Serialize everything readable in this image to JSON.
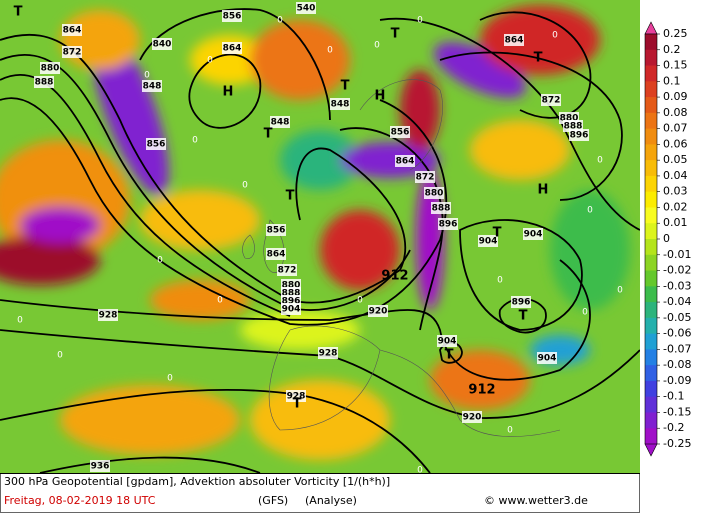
{
  "footer": {
    "description": "300 hPa Geopotential [gpdam], Advektion absoluter Vorticity [1/(h*h)]",
    "date": "Freitag, 08-02-2019  18 UTC",
    "model": "(GFS)",
    "run": "(Analyse)",
    "credit": "© www.wetter3.de"
  },
  "colorbar": {
    "labels": [
      "0.25",
      "0.2",
      "0.15",
      "0.1",
      "0.09",
      "0.08",
      "0.07",
      "0.06",
      "0.05",
      "0.04",
      "0.03",
      "0.02",
      "0.01",
      "0",
      "-0.01",
      "-0.02",
      "-0.03",
      "-0.04",
      "-0.05",
      "-0.06",
      "-0.07",
      "-0.08",
      "-0.09",
      "-0.1",
      "-0.15",
      "-0.2",
      "-0.25"
    ],
    "colors": [
      "#e8409c",
      "#9c0c2c",
      "#b81830",
      "#d02828",
      "#dc4020",
      "#e45a18",
      "#ec7414",
      "#f08c10",
      "#f4a40c",
      "#f8bc08",
      "#fcd404",
      "#fcec00",
      "#f8fc20",
      "#dcf41c",
      "#b4e41c",
      "#8cd424",
      "#64c82c",
      "#3cbc4c",
      "#2cb47c",
      "#24b0ac",
      "#20a0d4",
      "#2480e4",
      "#3060e4",
      "#4040e0",
      "#6030d8",
      "#8020d0",
      "#a010c8"
    ]
  },
  "map_labels": [
    "864",
    "872",
    "880",
    "888",
    "840",
    "856",
    "864",
    "848",
    "H",
    "848",
    "T",
    "856",
    "T",
    "856",
    "864",
    "872",
    "880",
    "888",
    "896",
    "904",
    "540",
    "T",
    "T",
    "T",
    "H",
    "848",
    "856",
    "864",
    "872",
    "880",
    "888",
    "896",
    "912",
    "920",
    "928",
    "928",
    "904",
    "T",
    "904",
    "H",
    "896",
    "T",
    "904",
    "904",
    "T",
    "912",
    "920",
    "936",
    "928",
    "T",
    "864",
    "T",
    "872",
    "880",
    "888",
    "896"
  ],
  "zero_labels": [
    "0",
    "0",
    "0",
    "0",
    "0",
    "0",
    "0",
    "0",
    "0",
    "0",
    "0",
    "0",
    "0",
    "0",
    "0",
    "0",
    "0",
    "0",
    "0",
    "0",
    "0",
    "0"
  ]
}
